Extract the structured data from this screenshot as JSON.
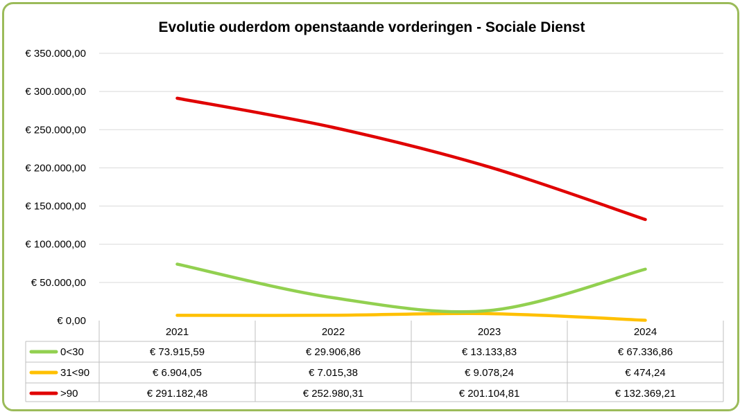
{
  "chart_data": {
    "type": "line",
    "title": "Evolutie ouderdom openstaande vorderingen - Sociale Dienst",
    "categories": [
      "2021",
      "2022",
      "2023",
      "2024"
    ],
    "ylim": [
      0,
      350000
    ],
    "yticks": [
      0,
      50000,
      100000,
      150000,
      200000,
      250000,
      300000,
      350000
    ],
    "ytick_labels": [
      "€ 0,00",
      "€ 50.000,00",
      "€ 100.000,00",
      "€ 150.000,00",
      "€ 200.000,00",
      "€ 250.000,00",
      "€ 300.000,00",
      "€ 350.000,00"
    ],
    "grid": true,
    "legend": "data-table",
    "series": [
      {
        "name": "0<30",
        "color": "#92d050",
        "values": [
          73915.59,
          29906.86,
          13133.83,
          67336.86
        ],
        "labels": [
          "€ 73.915,59",
          "€ 29.906,86",
          "€ 13.133,83",
          "€ 67.336,86"
        ]
      },
      {
        "name": "31<90",
        "color": "#ffc000",
        "values": [
          6904.05,
          7015.38,
          9078.24,
          474.24
        ],
        "labels": [
          "€ 6.904,05",
          "€ 7.015,38",
          "€ 9.078,24",
          "€ 474,24"
        ]
      },
      {
        "name": ">90",
        "color": "#e00000",
        "values": [
          291182.48,
          252980.31,
          201104.81,
          132369.21
        ],
        "labels": [
          "€ 291.182,48",
          "€ 252.980,31",
          "€ 201.104,81",
          "€ 132.369,21"
        ]
      }
    ]
  }
}
